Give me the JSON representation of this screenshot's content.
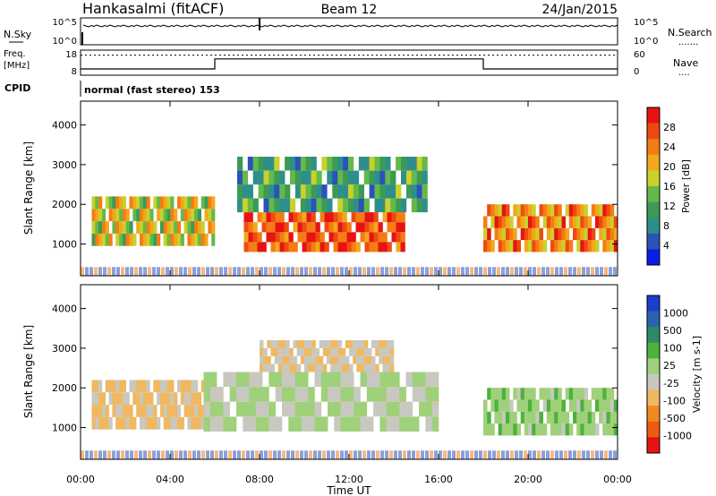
{
  "header": {
    "station": "Hankasalmi (fitACF)",
    "beam": "Beam 12",
    "date": "24/Jan/2015"
  },
  "top_panel": {
    "left_label": "N.Sky",
    "right_label": "N.Search",
    "right_legend_dots": ".......",
    "ticks_top": "10^5",
    "ticks_bottom": "10^0",
    "nsky_level_log": 3.5,
    "nsearch_level_log": 0,
    "marker_time_hours": 8
  },
  "freq_panel": {
    "left_label_1": "Freq.",
    "left_label_2": "[MHz]",
    "left_tick_top": "18",
    "left_tick_bottom": "8",
    "right_label": "Nave",
    "right_legend_dots": "....",
    "right_tick_top": "60",
    "right_tick_bottom": "0",
    "freq_segments": [
      {
        "from_h": 0,
        "to_h": 6,
        "mhz": 10.5
      },
      {
        "from_h": 6,
        "to_h": 18,
        "mhz": 14.5
      },
      {
        "from_h": 18,
        "to_h": 24,
        "mhz": 10.5
      }
    ],
    "nave_level": 48
  },
  "cpid_panel": {
    "label": "CPID",
    "text": "normal (fast stereo) 153"
  },
  "time_axis": {
    "label": "Time UT",
    "tick_labels": [
      "00:00",
      "04:00",
      "08:00",
      "12:00",
      "16:00",
      "20:00",
      "00:00"
    ],
    "tick_hours": [
      0,
      4,
      8,
      12,
      16,
      20,
      24
    ]
  },
  "chart_data": [
    {
      "type": "heatmap",
      "parameter": "Power",
      "ylabel": "Slant Range [km]",
      "xlabel": "",
      "xlim_hours": [
        0,
        24
      ],
      "ylim_km": [
        200,
        4600
      ],
      "y_tick_labels": [
        "1000",
        "2000",
        "3000",
        "4000"
      ],
      "y_ticks_km": [
        1000,
        2000,
        3000,
        4000
      ],
      "colorbar": {
        "label": "Power [dB]",
        "tick_labels": [
          "4",
          "8",
          "12",
          "16",
          "20",
          "24",
          "28"
        ],
        "range": [
          0,
          32
        ],
        "colors": [
          "#0b1ee6",
          "#2a52b8",
          "#2e8f8a",
          "#3c9a55",
          "#63b94a",
          "#c9d12a",
          "#f2a81c",
          "#f57c12",
          "#ee4a10",
          "#e81212"
        ]
      },
      "regions": [
        {
          "t0": 0.5,
          "t1": 6.0,
          "r0": 950,
          "r1": 2200,
          "value": 18
        },
        {
          "t0": 7.3,
          "t1": 14.5,
          "r0": 800,
          "r1": 1800,
          "value": 27
        },
        {
          "t0": 7.0,
          "t1": 15.5,
          "r0": 1800,
          "r1": 3200,
          "value": 11
        },
        {
          "t0": 18.0,
          "t1": 24.0,
          "r0": 800,
          "r1": 2000,
          "value": 23
        }
      ]
    },
    {
      "type": "heatmap",
      "parameter": "Velocity",
      "ylabel": "Slant Range [km]",
      "xlabel": "Time UT",
      "xlim_hours": [
        0,
        24
      ],
      "ylim_km": [
        200,
        4600
      ],
      "y_tick_labels": [
        "1000",
        "2000",
        "3000",
        "4000"
      ],
      "y_ticks_km": [
        1000,
        2000,
        3000,
        4000
      ],
      "colorbar": {
        "label": "Velocity [m s-1]",
        "tick_labels": [
          "1000",
          "500",
          "100",
          "25",
          "-25",
          "-100",
          "-500",
          "-1000"
        ],
        "range": [
          -1250,
          1250
        ],
        "colors": [
          "#1a3fd0",
          "#2a63b0",
          "#2e8a6a",
          "#4cb23c",
          "#9fd07a",
          "#c8c8c0",
          "#f0b860",
          "#f08a20",
          "#ee5a10",
          "#e81212"
        ]
      },
      "regions": [
        {
          "t0": 0.5,
          "t1": 6.0,
          "r0": 950,
          "r1": 2200,
          "value": -300
        },
        {
          "t0": 5.5,
          "t1": 16.0,
          "r0": 900,
          "r1": 2400,
          "value": 0
        },
        {
          "t0": 8.0,
          "t1": 14.0,
          "r0": 2400,
          "r1": 3200,
          "value": -250
        },
        {
          "t0": 18.0,
          "t1": 24.0,
          "r0": 800,
          "r1": 2000,
          "value": 150
        }
      ]
    }
  ]
}
